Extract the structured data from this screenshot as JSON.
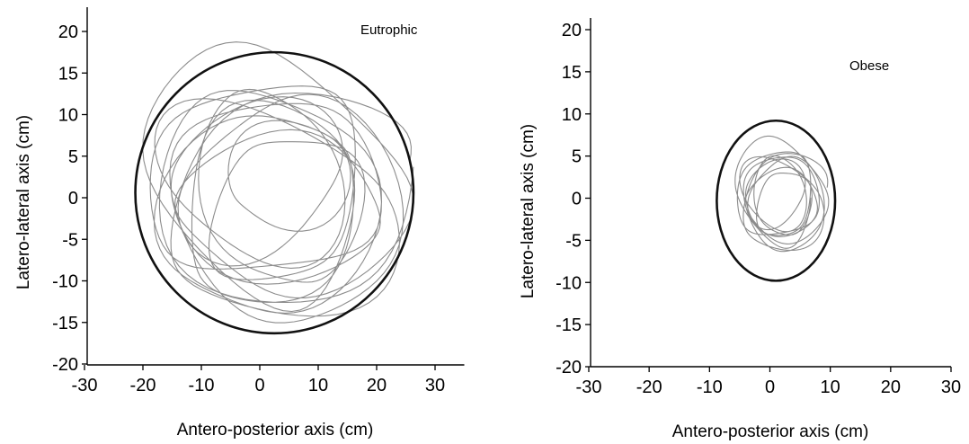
{
  "chart_data": [
    {
      "type": "line",
      "panel_label": "Eutrophic",
      "xlabel": "Antero-posterior axis (cm)",
      "ylabel": "Latero-lateral axis (cm)",
      "xlim": [
        -30,
        35
      ],
      "ylim": [
        -20,
        23
      ],
      "xticks": [
        -30,
        -20,
        -10,
        0,
        10,
        20,
        30
      ],
      "yticks": [
        -20,
        -15,
        -10,
        -5,
        0,
        5,
        10,
        15,
        20
      ],
      "ellipse": {
        "cx": 2.5,
        "cy": 0.6,
        "rx": 23.8,
        "ry": 16.9
      },
      "trajectory": {
        "center": [
          2.5,
          0.5
        ],
        "rx": 20.5,
        "ry": 13.5,
        "amplitude_x": 3.5,
        "amplitude_y": 3.0,
        "turns": 14
      },
      "colors": {
        "ellipse": "#111111",
        "trajectory": "#8c8c8c"
      }
    },
    {
      "type": "line",
      "panel_label": "Obese",
      "xlabel": "Antero-posterior axis (cm)",
      "ylabel": "Latero-lateral axis (cm)",
      "xlim": [
        -30,
        30
      ],
      "ylim": [
        -20,
        21
      ],
      "xticks": [
        -30,
        -20,
        -10,
        0,
        10,
        20,
        30
      ],
      "yticks": [
        -20,
        -15,
        -10,
        -5,
        0,
        5,
        10,
        15,
        20
      ],
      "ellipse": {
        "cx": 1.0,
        "cy": -0.3,
        "rx": 9.8,
        "ry": 9.5
      },
      "trajectory": {
        "center": [
          1.8,
          0.0
        ],
        "rx": 7.0,
        "ry": 5.8,
        "amplitude_x": 1.0,
        "amplitude_y": 1.0,
        "turns": 10
      },
      "colors": {
        "ellipse": "#111111",
        "trajectory": "#8c8c8c"
      }
    }
  ]
}
